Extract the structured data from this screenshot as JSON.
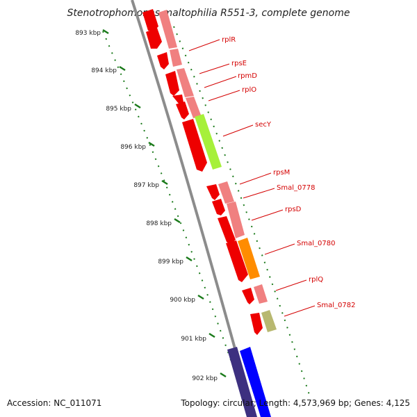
{
  "title": "Stenotrophomonas maltophilia R551-3, complete genome",
  "footer": {
    "accession": "Accession: NC_011071",
    "summary": "Topology: circular; Length: 4,573,969 bp; Genes: 4,125"
  },
  "ticks": [
    "893 kbp",
    "894 kbp",
    "895 kbp",
    "896 kbp",
    "897 kbp",
    "898 kbp",
    "899 kbp",
    "900 kbp",
    "901 kbp",
    "902 kbp"
  ],
  "gene_labels": [
    "rplR",
    "rpsE",
    "rpmD",
    "rplO",
    "secY",
    "rpsM",
    "Smal_0778",
    "rpsD",
    "Smal_0780",
    "rplQ",
    "Smal_0782"
  ],
  "colors": {
    "cds": "#ee0000",
    "cds_light": "#f08080",
    "secY": "#a6f03a",
    "Smal_0780": "#ff8c00",
    "Smal_0782": "#b8b870",
    "dark_blue": "#3d3080",
    "blue": "#0000ff",
    "backbone": "#8c8c8c",
    "tick": "#1a7a1a",
    "label_line": "#d40000"
  }
}
